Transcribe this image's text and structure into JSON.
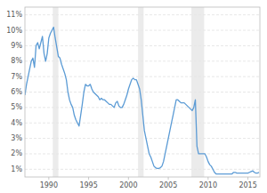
{
  "chart_data": {
    "type": "line",
    "x": [
      1987.0,
      1987.2,
      1987.4,
      1987.6,
      1987.8,
      1988.0,
      1988.2,
      1988.4,
      1988.6,
      1988.8,
      1989.0,
      1989.2,
      1989.4,
      1989.6,
      1989.8,
      1990.0,
      1990.2,
      1990.4,
      1990.6,
      1990.8,
      1991.0,
      1991.2,
      1991.4,
      1991.6,
      1991.8,
      1992.0,
      1992.2,
      1992.4,
      1992.6,
      1992.8,
      1993.0,
      1993.2,
      1993.4,
      1993.6,
      1993.8,
      1994.0,
      1994.2,
      1994.4,
      1994.6,
      1994.8,
      1995.0,
      1995.2,
      1995.4,
      1995.6,
      1995.8,
      1996.0,
      1996.2,
      1996.4,
      1996.6,
      1996.8,
      1997.0,
      1997.2,
      1997.4,
      1997.6,
      1997.8,
      1998.0,
      1998.2,
      1998.4,
      1998.6,
      1998.8,
      1999.0,
      1999.2,
      1999.4,
      1999.6,
      1999.8,
      2000.0,
      2000.2,
      2000.4,
      2000.6,
      2000.8,
      2001.0,
      2001.2,
      2001.4,
      2001.6,
      2001.8,
      2002.0,
      2002.2,
      2002.4,
      2002.6,
      2002.8,
      2003.0,
      2003.2,
      2003.4,
      2003.6,
      2003.8,
      2004.0,
      2004.2,
      2004.4,
      2004.6,
      2004.8,
      2005.0,
      2005.2,
      2005.4,
      2005.6,
      2005.8,
      2006.0,
      2006.2,
      2006.4,
      2006.6,
      2006.8,
      2007.0,
      2007.2,
      2007.4,
      2007.6,
      2007.8,
      2008.0,
      2008.2,
      2008.4,
      2008.6,
      2008.8,
      2009.0,
      2009.2,
      2009.4,
      2009.6,
      2009.8,
      2010.0,
      2010.2,
      2010.4,
      2010.6,
      2010.8,
      2011.0,
      2011.2,
      2011.4,
      2011.6,
      2011.8,
      2012.0,
      2012.2,
      2012.4,
      2012.6,
      2012.8,
      2013.0,
      2013.2,
      2013.4,
      2013.6,
      2013.8,
      2014.0,
      2014.2,
      2014.4,
      2014.6,
      2014.8,
      2015.0,
      2015.2,
      2015.4,
      2015.6,
      2015.8,
      2016.0,
      2016.2,
      2016.4
    ],
    "values": [
      5.8,
      6.5,
      7.0,
      7.5,
      8.0,
      8.2,
      7.6,
      9.0,
      9.2,
      8.8,
      9.2,
      9.6,
      8.5,
      8.0,
      8.5,
      9.5,
      9.8,
      10.0,
      10.2,
      9.5,
      8.9,
      8.3,
      8.2,
      7.8,
      7.5,
      7.2,
      6.8,
      6.0,
      5.5,
      5.2,
      5.0,
      4.5,
      4.2,
      4.0,
      3.8,
      4.5,
      5.2,
      6.0,
      6.5,
      6.4,
      6.4,
      6.5,
      6.2,
      6.0,
      5.9,
      5.8,
      5.7,
      5.5,
      5.6,
      5.5,
      5.5,
      5.4,
      5.3,
      5.2,
      5.2,
      5.1,
      5.0,
      5.3,
      5.4,
      5.1,
      5.0,
      5.0,
      5.2,
      5.5,
      5.8,
      6.2,
      6.5,
      6.8,
      6.9,
      6.8,
      6.8,
      6.5,
      6.2,
      5.5,
      4.5,
      3.5,
      3.0,
      2.5,
      2.0,
      1.8,
      1.5,
      1.2,
      1.1,
      1.05,
      1.05,
      1.1,
      1.2,
      1.5,
      2.0,
      2.5,
      3.0,
      3.5,
      4.0,
      4.5,
      5.0,
      5.5,
      5.5,
      5.4,
      5.3,
      5.3,
      5.3,
      5.2,
      5.1,
      5.0,
      4.9,
      4.8,
      5.0,
      5.5,
      2.5,
      2.0,
      2.0,
      2.0,
      2.0,
      2.0,
      1.8,
      1.5,
      1.3,
      1.2,
      1.0,
      0.8,
      0.7,
      0.7,
      0.7,
      0.7,
      0.7,
      0.7,
      0.7,
      0.7,
      0.7,
      0.7,
      0.7,
      0.8,
      0.8,
      0.75,
      0.75,
      0.75,
      0.75,
      0.75,
      0.75,
      0.75,
      0.75,
      0.8,
      0.85,
      0.9,
      0.8,
      0.75,
      0.75,
      0.8
    ],
    "color": "#5b9bd5",
    "recessions": [
      [
        1990.5,
        1991.2
      ],
      [
        2001.2,
        2001.9
      ],
      [
        2007.9,
        2009.5
      ]
    ],
    "xlim": [
      1987,
      2016.5
    ],
    "xticks": [
      1990,
      1995,
      2000,
      2005,
      2010,
      2015
    ],
    "ylim": [
      0.5,
      11.5
    ],
    "yticks": [
      {
        "value": 1,
        "label": "1%"
      },
      {
        "value": 2,
        "label": "2%"
      },
      {
        "value": 3,
        "label": "3%"
      },
      {
        "value": 4,
        "label": "4%"
      },
      {
        "value": 5,
        "label": "5%"
      },
      {
        "value": 6,
        "label": "6%"
      },
      {
        "value": 7,
        "label": "7%"
      },
      {
        "value": 8,
        "label": "8%"
      },
      {
        "value": 9,
        "label": "9%"
      },
      {
        "value": 10,
        "label": "10%"
      },
      {
        "value": 11,
        "label": "11%"
      }
    ],
    "grid": true
  }
}
